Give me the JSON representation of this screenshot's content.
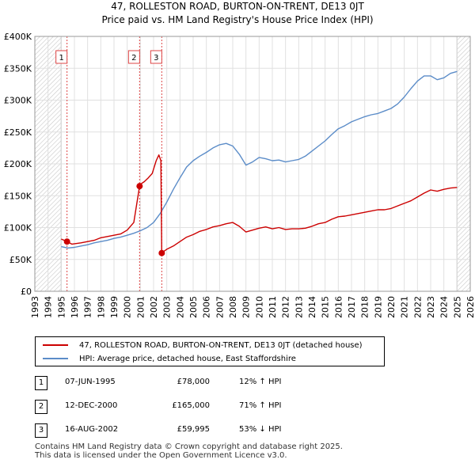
{
  "chart_data": {
    "type": "line",
    "title": "47, ROLLESTON ROAD, BURTON-ON-TRENT, DE13 0JT",
    "subtitle": "Price paid vs. HM Land Registry's House Price Index (HPI)",
    "xlim": [
      1993,
      2026
    ],
    "ylim": [
      0,
      400000
    ],
    "x_ticks": [
      "1993",
      "1994",
      "1995",
      "1996",
      "1997",
      "1998",
      "1999",
      "2000",
      "2001",
      "2002",
      "2003",
      "2004",
      "2005",
      "2006",
      "2007",
      "2008",
      "2009",
      "2010",
      "2011",
      "2012",
      "2013",
      "2014",
      "2015",
      "2016",
      "2017",
      "2018",
      "2019",
      "2020",
      "2021",
      "2022",
      "2023",
      "2024",
      "2025",
      "2026"
    ],
    "y_ticks": [
      {
        "value": 0,
        "label": "£0"
      },
      {
        "value": 50000,
        "label": "£50K"
      },
      {
        "value": 100000,
        "label": "£100K"
      },
      {
        "value": 150000,
        "label": "£150K"
      },
      {
        "value": 200000,
        "label": "£200K"
      },
      {
        "value": 250000,
        "label": "£250K"
      },
      {
        "value": 300000,
        "label": "£300K"
      },
      {
        "value": 350000,
        "label": "£350K"
      },
      {
        "value": 400000,
        "label": "£400K"
      }
    ],
    "hatched_ranges": [
      [
        1993,
        1995.0
      ],
      [
        2025.0,
        2026
      ]
    ],
    "series": [
      {
        "name": "47, ROLLESTON ROAD, BURTON-ON-TRENT, DE13 0JT (detached house)",
        "color": "#cc0000",
        "x": [
          1995.0,
          1995.44,
          1995.8,
          1996.5,
          1997.0,
          1997.5,
          1998.0,
          1998.5,
          1999.0,
          1999.5,
          2000.0,
          2000.5,
          2000.94,
          2001.0,
          2001.3,
          2001.6,
          2001.9,
          2002.2,
          2002.4,
          2002.55,
          2002.62,
          2002.8,
          2003.0,
          2003.5,
          2004.0,
          2004.5,
          2005.0,
          2005.5,
          2006.0,
          2006.5,
          2007.0,
          2007.5,
          2008.0,
          2008.5,
          2009.0,
          2009.5,
          2010.0,
          2010.5,
          2011.0,
          2011.5,
          2012.0,
          2012.5,
          2013.0,
          2013.5,
          2014.0,
          2014.5,
          2015.0,
          2015.5,
          2016.0,
          2016.5,
          2017.0,
          2017.5,
          2018.0,
          2018.5,
          2019.0,
          2019.5,
          2020.0,
          2020.5,
          2021.0,
          2021.5,
          2022.0,
          2022.5,
          2023.0,
          2023.5,
          2024.0,
          2024.5,
          2025.0
        ],
        "values": [
          82000,
          78000,
          74000,
          76000,
          78000,
          80000,
          84000,
          86000,
          88000,
          90000,
          96000,
          108000,
          165000,
          168000,
          172000,
          178000,
          185000,
          205000,
          214000,
          205000,
          59995,
          63000,
          66000,
          71000,
          78000,
          85000,
          89000,
          94000,
          97000,
          101000,
          103000,
          106000,
          108000,
          102000,
          93000,
          96000,
          99000,
          101000,
          98000,
          100000,
          97000,
          98000,
          98000,
          99000,
          102000,
          106000,
          108000,
          113000,
          117000,
          118000,
          120000,
          122000,
          124000,
          126000,
          128000,
          128000,
          130000,
          134000,
          138000,
          142000,
          148000,
          154000,
          159000,
          157000,
          160000,
          162000,
          163000
        ]
      },
      {
        "name": "HPI: Average price, detached house, East Staffordshire",
        "color": "#5b8cc8",
        "x": [
          1995.0,
          1995.5,
          1996.0,
          1996.5,
          1997.0,
          1997.5,
          1998.0,
          1998.5,
          1999.0,
          1999.5,
          2000.0,
          2000.5,
          2001.0,
          2001.5,
          2002.0,
          2002.5,
          2003.0,
          2003.5,
          2004.0,
          2004.5,
          2005.0,
          2005.5,
          2006.0,
          2006.5,
          2007.0,
          2007.5,
          2008.0,
          2008.5,
          2009.0,
          2009.5,
          2010.0,
          2010.5,
          2011.0,
          2011.5,
          2012.0,
          2012.5,
          2013.0,
          2013.5,
          2014.0,
          2014.5,
          2015.0,
          2015.5,
          2016.0,
          2016.5,
          2017.0,
          2017.5,
          2018.0,
          2018.5,
          2019.0,
          2019.5,
          2020.0,
          2020.5,
          2021.0,
          2021.5,
          2022.0,
          2022.5,
          2023.0,
          2023.5,
          2024.0,
          2024.5,
          2025.0
        ],
        "values": [
          70000,
          68000,
          69000,
          71000,
          73000,
          76000,
          78000,
          80000,
          83000,
          85000,
          88000,
          91000,
          95000,
          100000,
          108000,
          122000,
          140000,
          160000,
          178000,
          195000,
          205000,
          212000,
          218000,
          225000,
          230000,
          232000,
          228000,
          215000,
          198000,
          203000,
          210000,
          208000,
          205000,
          206000,
          203000,
          205000,
          207000,
          212000,
          220000,
          228000,
          236000,
          246000,
          255000,
          260000,
          266000,
          270000,
          274000,
          277000,
          279000,
          283000,
          287000,
          294000,
          305000,
          318000,
          330000,
          338000,
          338000,
          332000,
          335000,
          342000,
          345000
        ]
      }
    ],
    "sales": [
      {
        "label": "1",
        "x": 1995.44,
        "value": 78000,
        "date": "07-JUN-1995",
        "price": "£78,000",
        "hpi": "12% ↑ HPI"
      },
      {
        "label": "2",
        "x": 2000.94,
        "value": 165000,
        "date": "12-DEC-2000",
        "price": "£165,000",
        "hpi": "71% ↑ HPI"
      },
      {
        "label": "3",
        "x": 2002.62,
        "value": 59995,
        "date": "16-AUG-2002",
        "price": "£59,995",
        "hpi": "53% ↓ HPI"
      }
    ]
  },
  "legend": {
    "red": "47, ROLLESTON ROAD, BURTON-ON-TRENT, DE13 0JT (detached house)",
    "blue": "HPI: Average price, detached house, East Staffordshire"
  },
  "footer": {
    "line1": "Contains HM Land Registry data © Crown copyright and database right 2025.",
    "line2": "This data is licensed under the Open Government Licence v3.0."
  }
}
